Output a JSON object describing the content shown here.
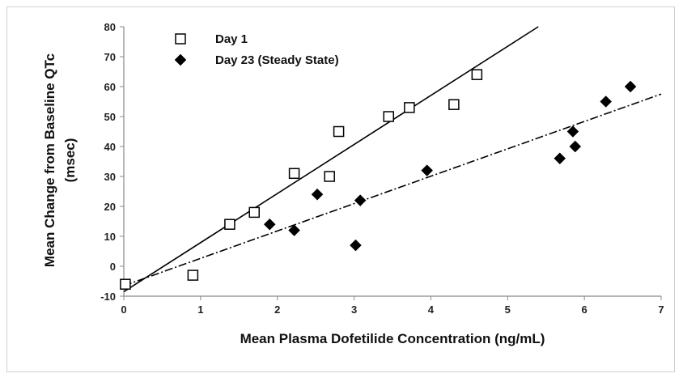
{
  "chart_data": {
    "type": "scatter",
    "title": "",
    "xlabel": "Mean Plasma Dofetilide Concentration (ng/mL)",
    "ylabel_line1": "Mean Change from Baseline QTc",
    "ylabel_line2": "(msec)",
    "xlim": [
      0,
      7
    ],
    "ylim": [
      -10,
      80
    ],
    "xticks": [
      "0",
      "1",
      "2",
      "3",
      "4",
      "5",
      "6",
      "7"
    ],
    "yticks": [
      "-10",
      "0",
      "10",
      "20",
      "30",
      "40",
      "50",
      "60",
      "70",
      "80"
    ],
    "grid": false,
    "legend_position": "top-left",
    "series": [
      {
        "name": "Day 1",
        "marker": "open-square",
        "color": "#000000",
        "x": [
          0.02,
          0.9,
          1.38,
          1.7,
          2.22,
          2.68,
          2.8,
          3.45,
          3.72,
          4.3,
          4.6
        ],
        "y": [
          -6,
          -3,
          14,
          18,
          31,
          30,
          45,
          50,
          53,
          54,
          64
        ],
        "trend": {
          "style": "solid",
          "x": [
            0.0,
            5.4
          ],
          "y": [
            -8.5,
            80
          ]
        }
      },
      {
        "name": "Day 23 (Steady State)",
        "marker": "filled-diamond",
        "color": "#000000",
        "x": [
          1.9,
          2.22,
          2.52,
          3.02,
          3.08,
          3.95,
          5.68,
          5.85,
          5.88,
          6.28,
          6.6
        ],
        "y": [
          14,
          12,
          24,
          7,
          22,
          32,
          36,
          45,
          40,
          55,
          60
        ],
        "trend": {
          "style": "dash-dot",
          "x": [
            0.0,
            7.0
          ],
          "y": [
            -6.5,
            57.5
          ]
        }
      }
    ]
  }
}
